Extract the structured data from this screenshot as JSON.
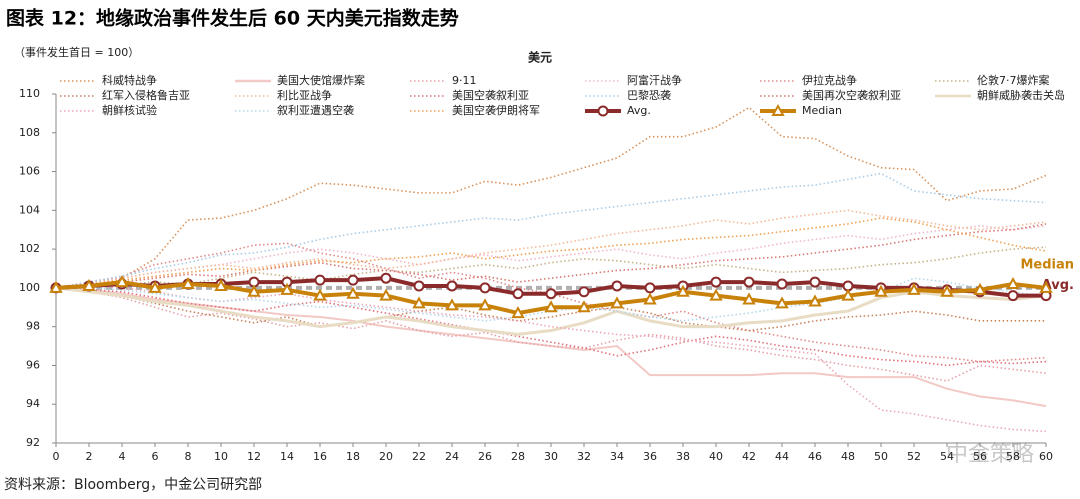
{
  "chart_data": {
    "type": "line",
    "title": "图表 12：地缘政治事件发生后 60 天内美元指数走势",
    "subtitle": "（事件发生首日 = 100）",
    "chart_title": "美元",
    "source": "资料来源：Bloomberg，中金公司研究部",
    "watermark": "中金策略",
    "x": [
      0,
      2,
      4,
      6,
      8,
      10,
      12,
      14,
      16,
      18,
      20,
      22,
      24,
      26,
      28,
      30,
      32,
      34,
      36,
      38,
      40,
      42,
      44,
      46,
      48,
      50,
      52,
      54,
      56,
      58,
      60
    ],
    "xlim": [
      0,
      60
    ],
    "xticks": [
      0,
      2,
      4,
      6,
      8,
      10,
      12,
      14,
      16,
      18,
      20,
      22,
      24,
      26,
      28,
      30,
      32,
      34,
      36,
      38,
      40,
      42,
      44,
      46,
      48,
      50,
      52,
      54,
      56,
      58,
      60
    ],
    "ylim": [
      92,
      110
    ],
    "yticks": [
      92,
      94,
      96,
      98,
      100,
      102,
      104,
      106,
      108,
      110
    ],
    "baseline": 100,
    "grid": false,
    "series": [
      {
        "name": "科威特战争",
        "color": "#d9925a",
        "style": "dotted",
        "values": [
          100,
          100.3,
          100.5,
          101.5,
          103.5,
          103.6,
          104.0,
          104.6,
          105.4,
          105.3,
          105.1,
          104.9,
          104.9,
          105.5,
          105.3,
          105.7,
          106.2,
          106.7,
          107.8,
          107.8,
          108.3,
          109.3,
          107.8,
          107.7,
          106.8,
          106.2,
          106.1,
          104.5,
          105.0,
          105.1,
          105.8
        ]
      },
      {
        "name": "美国大使馆爆炸案",
        "color": "#f2c9c4",
        "style": "solid",
        "values": [
          100,
          99.9,
          99.7,
          99.4,
          99.2,
          99.0,
          98.8,
          98.6,
          98.5,
          98.3,
          98.0,
          97.8,
          97.6,
          97.4,
          97.2,
          97.0,
          96.8,
          97.0,
          95.5,
          95.5,
          95.5,
          95.5,
          95.6,
          95.6,
          95.4,
          95.4,
          95.4,
          94.8,
          94.4,
          94.2,
          93.9
        ]
      },
      {
        "name": "9·11",
        "color": "#e6a0a8",
        "style": "dotted",
        "values": [
          100,
          99.8,
          99.5,
          99.0,
          98.5,
          98.7,
          98.4,
          98.0,
          98.2,
          97.9,
          98.3,
          97.8,
          97.5,
          97.7,
          97.2,
          97.0,
          96.9,
          97.3,
          97.6,
          97.4,
          97.0,
          96.8,
          96.5,
          96.3,
          96.0,
          95.8,
          95.5,
          95.2,
          96.0,
          95.8,
          95.6
        ]
      },
      {
        "name": "阿富汗战争",
        "color": "#f0b8c8",
        "style": "dotted",
        "values": [
          100,
          100.2,
          100.5,
          100.8,
          101.0,
          101.2,
          101.5,
          101.8,
          102.0,
          101.8,
          101.5,
          101.2,
          101.5,
          101.7,
          101.4,
          101.6,
          101.8,
          102.0,
          101.7,
          101.5,
          101.8,
          102.0,
          102.3,
          102.5,
          102.7,
          102.5,
          102.8,
          103.0,
          103.2,
          103.0,
          103.2
        ]
      },
      {
        "name": "伊拉克战争",
        "color": "#e08a8a",
        "style": "dotted",
        "values": [
          100,
          100.3,
          100.6,
          101.2,
          101.5,
          101.8,
          102.2,
          102.3,
          101.8,
          101.5,
          101.0,
          100.5,
          100.8,
          100.5,
          100.0,
          99.7,
          99.2,
          98.8,
          98.5,
          98.8,
          98.2,
          97.8,
          97.5,
          97.2,
          97.0,
          96.8,
          96.5,
          96.4,
          96.2,
          96.3,
          96.4
        ]
      },
      {
        "name": "伦敦7·7爆炸案",
        "color": "#c4b48a",
        "style": "dotted",
        "values": [
          100,
          100.1,
          100.2,
          100.3,
          100.2,
          100.5,
          100.8,
          100.6,
          100.4,
          100.7,
          100.9,
          100.8,
          101.0,
          101.2,
          101.0,
          101.3,
          101.5,
          101.4,
          101.2,
          101.0,
          101.2,
          101.0,
          100.8,
          100.9,
          101.0,
          101.2,
          101.3,
          101.5,
          101.8,
          102.0,
          102.1
        ]
      },
      {
        "name": "红军入侵格鲁吉亚",
        "color": "#c8845a",
        "style": "dotted",
        "values": [
          100,
          99.8,
          99.6,
          99.2,
          98.8,
          98.5,
          98.2,
          98.5,
          98.0,
          98.2,
          98.5,
          98.8,
          99.0,
          98.6,
          98.3,
          98.5,
          98.8,
          99.0,
          98.7,
          98.2,
          98.0,
          97.8,
          98.0,
          98.3,
          98.5,
          98.6,
          98.8,
          98.6,
          98.3,
          98.3,
          98.3
        ]
      },
      {
        "name": "利比亚战争",
        "color": "#f4b89a",
        "style": "dotted",
        "values": [
          100,
          100.2,
          100.5,
          100.8,
          101.0,
          101.2,
          101.0,
          101.3,
          101.5,
          101.2,
          101.0,
          101.2,
          101.5,
          101.8,
          102.0,
          102.2,
          102.5,
          102.8,
          103.0,
          103.2,
          103.5,
          103.3,
          103.6,
          103.8,
          104.0,
          103.7,
          103.5,
          103.2,
          103.0,
          103.2,
          103.4
        ]
      },
      {
        "name": "美国空袭叙利亚",
        "color": "#e0707a",
        "style": "dotted",
        "values": [
          100,
          99.9,
          99.8,
          99.5,
          99.2,
          99.0,
          98.8,
          99.1,
          99.3,
          99.0,
          98.7,
          98.4,
          98.1,
          97.8,
          97.5,
          97.2,
          96.9,
          96.5,
          96.8,
          97.2,
          97.5,
          97.3,
          97.0,
          96.8,
          96.5,
          96.3,
          96.2,
          96.0,
          96.2,
          96.1,
          96.2
        ]
      },
      {
        "name": "巴黎恐袭",
        "color": "#a8cce8",
        "style": "dotted",
        "values": [
          100,
          100.3,
          100.6,
          101.0,
          101.3,
          101.7,
          101.8,
          102.1,
          102.5,
          102.8,
          103.0,
          103.2,
          103.4,
          103.6,
          103.5,
          103.8,
          104.0,
          104.2,
          104.4,
          104.6,
          104.8,
          105.0,
          105.2,
          105.3,
          105.6,
          105.9,
          105.0,
          104.8,
          104.6,
          104.5,
          104.4
        ]
      },
      {
        "name": "美国再次空袭叙利亚",
        "color": "#d87870",
        "style": "dotted",
        "values": [
          100,
          100.1,
          100.3,
          100.5,
          100.7,
          100.6,
          100.9,
          101.1,
          101.3,
          101.0,
          100.9,
          100.7,
          100.4,
          100.6,
          100.3,
          100.5,
          100.7,
          100.9,
          101.0,
          101.2,
          101.4,
          101.5,
          101.6,
          101.8,
          102.0,
          102.2,
          102.5,
          102.7,
          102.9,
          103.0,
          103.3
        ]
      },
      {
        "name": "朝鲜威胁袭击关岛",
        "color": "#e8dcc4",
        "style": "solid",
        "values": [
          100,
          99.8,
          99.6,
          99.3,
          99.1,
          98.8,
          98.5,
          98.3,
          98.0,
          98.2,
          98.5,
          98.3,
          98.0,
          97.8,
          97.6,
          97.8,
          98.2,
          98.8,
          98.3,
          98.0,
          98.0,
          98.2,
          98.3,
          98.6,
          98.8,
          99.5,
          99.8,
          99.6,
          99.5,
          99.4,
          99.6
        ]
      },
      {
        "name": "朝鲜核试验",
        "color": "#eaa8b8",
        "style": "dotted",
        "values": [
          100,
          100.1,
          100.0,
          99.8,
          99.5,
          99.3,
          99.5,
          99.7,
          99.4,
          99.2,
          99.0,
          98.8,
          98.6,
          98.5,
          98.3,
          98.0,
          97.8,
          97.6,
          97.5,
          97.3,
          97.2,
          97.0,
          96.8,
          96.6,
          95.0,
          93.7,
          93.5,
          93.2,
          92.9,
          92.7,
          92.6
        ]
      },
      {
        "name": "叙利亚遭遇空袭",
        "color": "#b4d8ee",
        "style": "dotted",
        "values": [
          100,
          100.0,
          99.9,
          99.7,
          99.5,
          99.3,
          99.4,
          99.2,
          99.0,
          99.1,
          98.9,
          98.7,
          98.5,
          98.3,
          98.5,
          98.8,
          99.0,
          98.8,
          98.5,
          98.3,
          98.5,
          98.7,
          99.0,
          99.2,
          99.5,
          99.8,
          100.5,
          100.3,
          100.0,
          99.8,
          99.5
        ]
      },
      {
        "name": "美国空袭伊朗将军",
        "color": "#f0a050",
        "style": "dotted",
        "values": [
          100,
          100.2,
          100.4,
          100.6,
          100.8,
          101.0,
          100.9,
          101.2,
          101.4,
          101.3,
          101.5,
          101.6,
          101.8,
          101.5,
          101.7,
          101.9,
          102.0,
          102.2,
          102.3,
          102.5,
          102.6,
          102.7,
          102.9,
          103.1,
          103.3,
          103.6,
          103.4,
          103.0,
          102.6,
          102.2,
          101.9
        ]
      },
      {
        "name": "Avg.",
        "color": "#8b2a2a",
        "style": "solid",
        "marker": "circle",
        "end_label": true,
        "values": [
          100,
          100.1,
          100.2,
          100.1,
          100.2,
          100.2,
          100.3,
          100.3,
          100.4,
          100.4,
          100.5,
          100.1,
          100.1,
          100.0,
          99.7,
          99.7,
          99.8,
          100.1,
          100.0,
          100.1,
          100.3,
          100.3,
          100.2,
          100.3,
          100.1,
          100.0,
          100.0,
          99.9,
          99.8,
          99.6,
          99.6
        ]
      },
      {
        "name": "Median",
        "color": "#c8820a",
        "style": "solid",
        "marker": "triangle",
        "end_label": true,
        "values": [
          100,
          100.1,
          100.3,
          100.0,
          100.2,
          100.1,
          99.8,
          99.9,
          99.6,
          99.7,
          99.6,
          99.2,
          99.1,
          99.1,
          98.7,
          99.0,
          99.0,
          99.2,
          99.4,
          99.8,
          99.6,
          99.4,
          99.2,
          99.3,
          99.6,
          99.8,
          99.9,
          99.8,
          99.9,
          100.2,
          100.0
        ]
      }
    ]
  }
}
